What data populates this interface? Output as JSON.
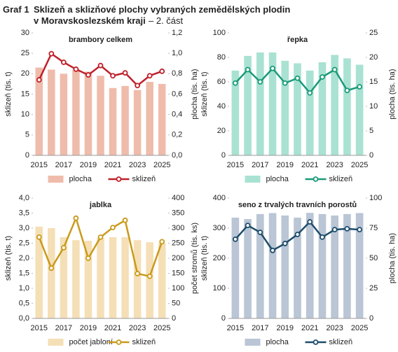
{
  "header": {
    "label": "Graf 1",
    "title": "Sklizeň a sklizňové plochy vybraných  zemědělských plodin",
    "title_line2": "v Moravskoslezském  kraji",
    "part": "– 2. část"
  },
  "chart_data": [
    {
      "type": "combo",
      "title": "brambory celkem",
      "categories": [
        "2015",
        null,
        "2017",
        null,
        "2019",
        null,
        "2021",
        null,
        "2023",
        null,
        "2025"
      ],
      "ylabel": "sklizeň (tis. t)",
      "y2label": "plocha (tis. ha)",
      "ylim": [
        0,
        30
      ],
      "yticks": [
        0,
        5,
        10,
        15,
        20,
        25,
        30
      ],
      "y2lim": [
        0,
        1.2
      ],
      "y2ticks": [
        {
          "value": 0,
          "label": "0,0"
        },
        {
          "value": 0.2,
          "label": "0,2"
        },
        {
          "value": 0.4,
          "label": "0,4"
        },
        {
          "value": 0.6,
          "label": "0,6"
        },
        {
          "value": 0.8,
          "label": "0,8"
        },
        {
          "value": 1.0,
          "label": "1,0"
        },
        {
          "value": 1.2,
          "label": "1,2"
        }
      ],
      "series": [
        {
          "name": "plocha",
          "type": "bar",
          "axis": "y2",
          "color": "#efbcab",
          "values": [
            0.86,
            0.84,
            0.8,
            0.84,
            0.82,
            0.78,
            0.66,
            0.68,
            0.64,
            0.72,
            0.7
          ]
        },
        {
          "name": "sklizeň",
          "type": "line",
          "color": "#c0202a",
          "values": [
            18.5,
            24.9,
            22.8,
            21.1,
            19.7,
            22,
            19.5,
            20.2,
            17.1,
            19.5,
            20.6
          ]
        }
      ]
    },
    {
      "type": "combo",
      "title": "řepka",
      "categories": [
        "2015",
        null,
        "2017",
        null,
        "2019",
        null,
        "2021",
        null,
        "2023",
        null,
        "2025"
      ],
      "ylabel": "sklizeň (tis. t)",
      "y2label": "plocha (tis. ha)",
      "ylim": [
        0,
        100
      ],
      "yticks": [
        0,
        20,
        40,
        60,
        80,
        100
      ],
      "y2lim": [
        0,
        25
      ],
      "y2ticks": [
        0,
        5,
        10,
        15,
        20,
        25
      ],
      "series": [
        {
          "name": "plocha",
          "type": "bar",
          "axis": "y2",
          "color": "#a9e2d2",
          "values": [
            17.3,
            20.3,
            21,
            21,
            19.3,
            18.8,
            17.3,
            19,
            20.5,
            19.8,
            18.5
          ]
        },
        {
          "name": "sklizeň",
          "type": "line",
          "color": "#1a9a78",
          "values": [
            59,
            70,
            60,
            71,
            59,
            63,
            51,
            64,
            70,
            53,
            56
          ]
        }
      ]
    },
    {
      "type": "combo",
      "title": "jablka",
      "categories": [
        "2015",
        null,
        "2017",
        null,
        "2019",
        null,
        "2021",
        null,
        "2023",
        null,
        "2025"
      ],
      "ylabel": "sklizeň (tis. t)",
      "y2label": "počet stromů (tis. ks)",
      "ylim": [
        0,
        4
      ],
      "yticks": [
        {
          "value": 0,
          "label": "0,0"
        },
        {
          "value": 0.5,
          "label": "0,5"
        },
        {
          "value": 1,
          "label": "1,0"
        },
        {
          "value": 1.5,
          "label": "1,5"
        },
        {
          "value": 2,
          "label": "2,0"
        },
        {
          "value": 2.5,
          "label": "2,5"
        },
        {
          "value": 3,
          "label": "3,0"
        },
        {
          "value": 3.5,
          "label": "3,5"
        },
        {
          "value": 4,
          "label": "4,0"
        }
      ],
      "y2lim": [
        0,
        400
      ],
      "y2ticks": [
        0,
        50,
        100,
        150,
        200,
        250,
        300,
        350,
        400
      ],
      "series": [
        {
          "name": "počet jabloní",
          "type": "bar",
          "axis": "y2",
          "color": "#f5dfb6",
          "values": [
            305,
            300,
            270,
            260,
            258,
            267,
            270,
            270,
            260,
            253,
            250
          ]
        },
        {
          "name": "sklizeň",
          "type": "line",
          "color": "#c99a1a",
          "values": [
            2.7,
            1.67,
            2.35,
            3.33,
            2.0,
            2.7,
            3.02,
            3.26,
            1.49,
            1.4,
            2.55
          ]
        }
      ]
    },
    {
      "type": "combo",
      "title": "seno z trvalých travních porostů",
      "categories": [
        "2015",
        null,
        "2017",
        null,
        "2019",
        null,
        "2021",
        null,
        "2023",
        null,
        "2025"
      ],
      "ylabel": "sklizeň (tis. t)",
      "y2label": "plocha (tis. ha)",
      "ylim": [
        0,
        400
      ],
      "yticks": [
        0,
        100,
        200,
        300,
        400
      ],
      "y2lim": [
        0,
        100
      ],
      "y2ticks": [
        0,
        25,
        50,
        75,
        100
      ],
      "series": [
        {
          "name": "plocha",
          "type": "bar",
          "axis": "y2",
          "color": "#bac5d5",
          "values": [
            83.7,
            82.5,
            86.7,
            87.5,
            85.5,
            83.7,
            87.7,
            86.7,
            85.5,
            86.7,
            87.5
          ]
        },
        {
          "name": "sklizeň",
          "type": "line",
          "color": "#1e4d6b",
          "values": [
            263,
            309,
            286,
            226,
            249,
            279,
            321,
            270,
            295,
            298,
            295
          ]
        }
      ]
    }
  ]
}
